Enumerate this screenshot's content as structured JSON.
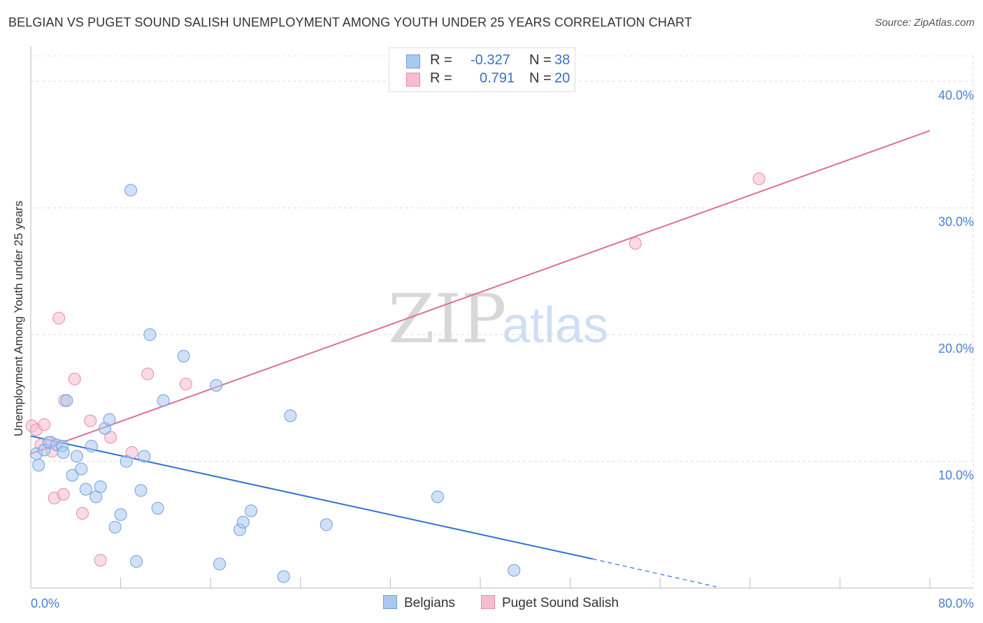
{
  "title": "BELGIAN VS PUGET SOUND SALISH UNEMPLOYMENT AMONG YOUTH UNDER 25 YEARS CORRELATION CHART",
  "source": "Source: ZipAtlas.com",
  "watermark": {
    "zip": "ZIP",
    "atlas": "atlas"
  },
  "colors": {
    "belgians_fill": "#aac8f0",
    "belgians_stroke": "#6f9fe0",
    "belgians_line": "#2f72d4",
    "salish_fill": "#f6bdd0",
    "salish_stroke": "#e88aaa",
    "salish_line": "#e06e96",
    "tick_text": "#4a7fd0"
  },
  "legend": {
    "rows": [
      {
        "r_label": "R =",
        "r_value": "-0.327",
        "n_label": "N =",
        "n_value": "38"
      },
      {
        "r_label": "R =",
        "r_value": "0.791",
        "n_label": "N =",
        "n_value": "20"
      }
    ]
  },
  "bottom_legend": {
    "belgians": "Belgians",
    "salish": "Puget Sound Salish"
  },
  "chart_data": {
    "type": "scatter",
    "title": "BELGIAN VS PUGET SOUND SALISH UNEMPLOYMENT AMONG YOUTH UNDER 25 YEARS CORRELATION CHART",
    "xlabel": "",
    "ylabel": "Unemployment Among Youth under 25 years",
    "xlim": [
      0,
      80
    ],
    "ylim": [
      0,
      42
    ],
    "x_tick_labels": [
      "0.0%",
      "80.0%"
    ],
    "y_ticks": [
      10,
      20,
      30,
      40
    ],
    "y_tick_labels": [
      "10.0%",
      "20.0%",
      "30.0%",
      "40.0%"
    ],
    "grid": true,
    "series": [
      {
        "name": "Belgians",
        "r": -0.327,
        "n": 38,
        "trend": {
          "x0": 0,
          "y0": 12.0,
          "x1": 50,
          "y1": 2.3,
          "dash_to_x": 61,
          "dash_to_y": 0.1
        },
        "points": [
          [
            0.5,
            10.6
          ],
          [
            0.7,
            9.7
          ],
          [
            1.2,
            10.9
          ],
          [
            1.6,
            11.5
          ],
          [
            2.3,
            11.3
          ],
          [
            2.8,
            11.2
          ],
          [
            2.9,
            10.7
          ],
          [
            3.2,
            14.8
          ],
          [
            3.7,
            8.9
          ],
          [
            4.1,
            10.4
          ],
          [
            4.5,
            9.4
          ],
          [
            4.9,
            7.8
          ],
          [
            5.4,
            11.2
          ],
          [
            5.8,
            7.2
          ],
          [
            6.2,
            8.0
          ],
          [
            6.6,
            12.6
          ],
          [
            7.0,
            13.3
          ],
          [
            7.5,
            4.8
          ],
          [
            8.0,
            5.8
          ],
          [
            8.5,
            10.0
          ],
          [
            8.9,
            31.4
          ],
          [
            9.4,
            2.1
          ],
          [
            9.8,
            7.7
          ],
          [
            10.1,
            10.4
          ],
          [
            10.6,
            20.0
          ],
          [
            11.3,
            6.3
          ],
          [
            11.8,
            14.8
          ],
          [
            13.6,
            18.3
          ],
          [
            16.5,
            16.0
          ],
          [
            16.8,
            1.9
          ],
          [
            18.6,
            4.6
          ],
          [
            18.9,
            5.2
          ],
          [
            19.6,
            6.1
          ],
          [
            22.5,
            0.9
          ],
          [
            23.1,
            13.6
          ],
          [
            26.3,
            5.0
          ],
          [
            36.2,
            7.2
          ],
          [
            43.0,
            1.4
          ]
        ]
      },
      {
        "name": "Puget Sound Salish",
        "r": 0.791,
        "n": 20,
        "trend": {
          "x0": 0,
          "y0": 10.6,
          "x1": 80,
          "y1": 36.1
        },
        "points": [
          [
            0.1,
            12.8
          ],
          [
            0.5,
            12.5
          ],
          [
            0.9,
            11.3
          ],
          [
            1.2,
            12.9
          ],
          [
            1.8,
            11.5
          ],
          [
            1.9,
            10.8
          ],
          [
            2.1,
            7.1
          ],
          [
            2.5,
            21.3
          ],
          [
            2.9,
            7.4
          ],
          [
            3.0,
            14.8
          ],
          [
            3.9,
            16.5
          ],
          [
            4.6,
            5.9
          ],
          [
            5.3,
            13.2
          ],
          [
            6.2,
            2.2
          ],
          [
            7.1,
            11.9
          ],
          [
            9.0,
            10.7
          ],
          [
            10.4,
            16.9
          ],
          [
            13.8,
            16.1
          ],
          [
            53.8,
            27.2
          ],
          [
            64.8,
            32.3
          ]
        ]
      }
    ]
  }
}
